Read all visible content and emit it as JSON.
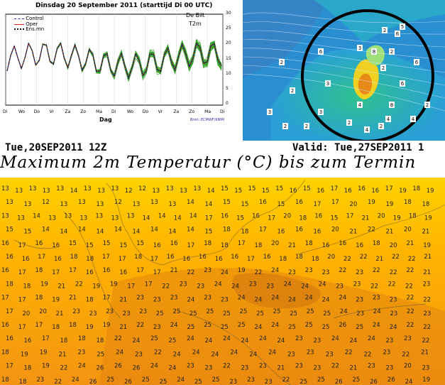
{
  "ensemble_panel": {
    "title": "Dinsdag  20 September 2011  (starttijd  Di 00 UTC)",
    "legend": [
      "Control",
      "Oper",
      "Ens.mn"
    ],
    "station": "De Bilt",
    "parameter": "T2m",
    "yticks": [
      "30",
      "25",
      "20",
      "15",
      "10",
      "5",
      "0"
    ],
    "xticks": [
      "Di",
      "Wo",
      "Do",
      "Vr",
      "Za",
      "Zo",
      "Ma",
      "Di",
      "Wo",
      "Do",
      "Vr",
      "Za",
      "Zo",
      "Ma",
      "Di"
    ],
    "xlabel": "Dag",
    "source": "Bron: ECMWF/KNMI",
    "colors": {
      "ensemble": "#3aa22f",
      "control": "#2030d0",
      "oper": "#e02020",
      "ensmean": "#111111"
    }
  },
  "rain_panel": {
    "numbers": [
      "2",
      "6",
      "5",
      "6",
      "2",
      "3",
      "8",
      "6",
      "2",
      "3",
      "6",
      "4",
      "8",
      "4",
      "2",
      "2",
      "3",
      "2",
      "2",
      "2",
      "4",
      "2",
      "4",
      "2",
      "3"
    ],
    "colors": {
      "sea": "#1f8fcf",
      "land_green": "#3fc08a",
      "yellow": "#f0d020",
      "orange": "#e88a18",
      "circle": "#000000"
    }
  },
  "temp_map": {
    "run_label": "Tue,20SEP2011  12Z",
    "valid_label": "Valid: Tue,27SEP2011  1",
    "title": "Maximum 2m Temperatur (°C) bis zum Termin",
    "rows": [
      "13 13 13 13 13 14 13 13 13 12 12 13 13 13 13 14 15 15 15 15 15 16 15 16 17 16 16 16 17 19 18 19",
      "13 13 12 13 13 13 12 13 13 13 14 14 15 15 16 15 16 17 17 20 19 19 18 18",
      "13 13 14 13 13 13 13 13 13 14 14 14 14 17 16 15 16 17 20 18 16 15 17 21 20 19 18 19",
      "15 15 14 14 14 14 14 14 14 14 14 15 18 18 17 16 16 16 20 21 22 21 20 21",
      "16 17 16 16 15 15 15 15 15 16 16 17 18 18 17 18 20 21 18 16 16 16 18 20 21 19",
      "16 16 17 16 18 18 17 17 18 17 16 16 16 16 16 17 16 18 18 18 20 22 22 21 22 22 21",
      "16 17 18 17 17 16 16 16 17 17 21 22 23 24 19 22 24 23 23 23 22 23 22 22 22 21",
      "18 18 19 21 22 19 19 17 17 22 23 23 24 24 23 23 24 24 24 23 23 22 22 22 23",
      "17 17 18 19 21 18 17 21 23 23 23 24 23 23 24 24 24 24 24 24 24 23 23 23 22 22",
      "17 20 20 21 23 23 23 23 23 25 25 25 25 25 25 25 25 25 25 25 24 23 24 23 22 23",
      "16 17 17 18 18 19 19 21 22 23 24 25 25 25 25 24 24 25 25 25 26 25 24 24 22 22",
      "16 16 17 18 18 18 22 24 25 25 24 24 24 24 24 24 23 23 24 24 24 23 23 22",
      "18 19 19 21 23 25 24 23 22 24 24 24 24 24 24 23 23 23 22 22 23 22 21",
      "17 18 19 22 24 26 26 26 24 24 23 23 22 23 23 21 23 23 22 21 23 23 20 23",
      "18 18 23 22 24 26 25 26 25 25 24 25 25 23 23 23 22 25 25 26 25 26 26 24 19"
    ],
    "colors": {
      "light": "#ffd400",
      "mid": "#ffb000",
      "warm": "#f59a12",
      "dark": "#d97a10"
    }
  }
}
